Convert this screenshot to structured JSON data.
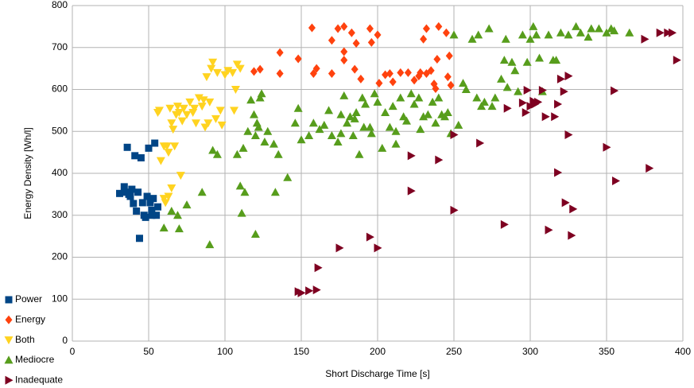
{
  "chart_data": {
    "type": "scatter",
    "x_label": "Short Discharge Time [s]",
    "y_label": "Energy Density [Wh/l]",
    "xlim": [
      0,
      400
    ],
    "ylim": [
      0,
      800
    ],
    "xticks": [
      0,
      50,
      100,
      150,
      200,
      250,
      300,
      350,
      400
    ],
    "yticks": [
      0,
      100,
      200,
      300,
      400,
      500,
      600,
      700,
      800
    ],
    "grid": true,
    "legend": "bottom-left",
    "series": [
      {
        "name": "Power",
        "color": "#004586",
        "marker": "square",
        "x": [
          31,
          34,
          36,
          37,
          39,
          40,
          41,
          42,
          43,
          44,
          45,
          46,
          47,
          48,
          49,
          50,
          51,
          52,
          53,
          54,
          55,
          56,
          52,
          35,
          38
        ],
        "values": [
          352,
          368,
          462,
          350,
          362,
          328,
          442,
          310,
          355,
          245,
          437,
          330,
          300,
          295,
          345,
          460,
          330,
          312,
          340,
          472,
          300,
          320,
          300,
          355,
          345
        ]
      },
      {
        "name": "Energy",
        "color": "#ff420e",
        "marker": "diamond",
        "x": [
          119,
          123,
          136,
          136,
          148,
          157,
          158,
          160,
          170,
          170,
          174,
          178,
          178,
          178,
          183,
          185,
          186,
          189,
          195,
          200,
          196,
          201,
          205,
          208,
          210,
          215,
          220,
          224,
          227,
          228,
          230,
          232,
          232,
          235,
          237,
          238,
          239,
          240,
          245,
          246,
          247,
          248
        ],
        "values": [
          643,
          648,
          688,
          638,
          673,
          747,
          638,
          650,
          638,
          717,
          745,
          690,
          670,
          750,
          735,
          648,
          710,
          625,
          745,
          730,
          712,
          615,
          635,
          638,
          618,
          640,
          640,
          622,
          632,
          640,
          720,
          638,
          745,
          645,
          613,
          602,
          672,
          750,
          735,
          630,
          680,
          610
        ]
      },
      {
        "name": "Both",
        "color": "#ffd320",
        "marker": "down",
        "x": [
          56,
          57,
          58,
          60,
          61,
          62,
          63,
          64,
          65,
          66,
          67,
          68,
          69,
          70,
          71,
          72,
          73,
          75,
          77,
          79,
          80,
          81,
          83,
          85,
          86,
          87,
          88,
          89,
          90,
          91,
          92,
          94,
          95,
          97,
          98,
          100,
          102,
          105,
          106,
          107,
          108,
          110,
          60,
          65,
          63
        ],
        "values": [
          545,
          550,
          430,
          340,
          330,
          465,
          450,
          555,
          520,
          505,
          465,
          540,
          560,
          545,
          395,
          525,
          555,
          540,
          570,
          545,
          555,
          520,
          580,
          560,
          575,
          510,
          630,
          520,
          570,
          650,
          665,
          530,
          640,
          550,
          515,
          635,
          645,
          640,
          550,
          600,
          660,
          650,
          465,
          365,
          345
        ]
      },
      {
        "name": "Mediocre",
        "color": "#579d1c",
        "marker": "up",
        "x": [
          60,
          65,
          69,
          70,
          75,
          85,
          90,
          92,
          95,
          108,
          110,
          111,
          112,
          113,
          115,
          117,
          119,
          120,
          120,
          121,
          122,
          123,
          124,
          126,
          128,
          132,
          133,
          135,
          141,
          146,
          148,
          150,
          155,
          158,
          162,
          165,
          168,
          170,
          174,
          176,
          178,
          180,
          182,
          184,
          186,
          188,
          190,
          191,
          192,
          195,
          198,
          200,
          203,
          205,
          208,
          210,
          212,
          215,
          217,
          219,
          222,
          224,
          227,
          230,
          233,
          236,
          238,
          240,
          242,
          244,
          246,
          248,
          250,
          253,
          256,
          258,
          262,
          265,
          266,
          268,
          270,
          273,
          275,
          277,
          281,
          283,
          284,
          285,
          288,
          290,
          292,
          295,
          298,
          300,
          302,
          304,
          306,
          308,
          312,
          315,
          317,
          320,
          325,
          330,
          333,
          338,
          340,
          345,
          350,
          353,
          355,
          365,
          185,
          196,
          212,
          228,
          176
        ],
        "values": [
          270,
          310,
          300,
          268,
          325,
          355,
          230,
          455,
          445,
          445,
          370,
          305,
          460,
          355,
          500,
          575,
          540,
          490,
          255,
          520,
          510,
          580,
          590,
          475,
          500,
          470,
          355,
          445,
          390,
          520,
          555,
          480,
          490,
          520,
          505,
          515,
          550,
          490,
          475,
          495,
          585,
          520,
          535,
          490,
          545,
          445,
          580,
          510,
          565,
          510,
          590,
          570,
          460,
          545,
          510,
          560,
          470,
          580,
          535,
          525,
          590,
          565,
          580,
          535,
          540,
          570,
          520,
          580,
          540,
          535,
          545,
          495,
          730,
          515,
          615,
          600,
          720,
          580,
          730,
          560,
          570,
          745,
          560,
          580,
          625,
          670,
          720,
          605,
          665,
          645,
          595,
          730,
          665,
          720,
          750,
          730,
          675,
          595,
          730,
          670,
          670,
          735,
          730,
          750,
          735,
          725,
          745,
          745,
          735,
          745,
          740,
          735,
          530,
          495,
          500,
          505,
          540
        ]
      },
      {
        "name": "Inadequate",
        "color": "#7e0021",
        "marker": "right",
        "x": [
          148,
          150,
          155,
          160,
          161,
          175,
          195,
          200,
          222,
          222,
          240,
          250,
          250,
          267,
          283,
          285,
          295,
          297,
          298,
          300,
          302,
          303,
          305,
          308,
          310,
          312,
          316,
          318,
          318,
          320,
          322,
          323,
          325,
          325,
          327,
          328,
          350,
          355,
          356,
          375,
          378,
          385,
          390,
          393,
          396
        ],
        "values": [
          118,
          115,
          120,
          122,
          175,
          222,
          248,
          222,
          442,
          358,
          432,
          492,
          312,
          472,
          278,
          555,
          568,
          545,
          598,
          560,
          572,
          565,
          570,
          598,
          535,
          265,
          535,
          402,
          565,
          625,
          595,
          330,
          632,
          492,
          252,
          315,
          462,
          597,
          382,
          720,
          412,
          735,
          735,
          735,
          670
        ]
      }
    ]
  }
}
